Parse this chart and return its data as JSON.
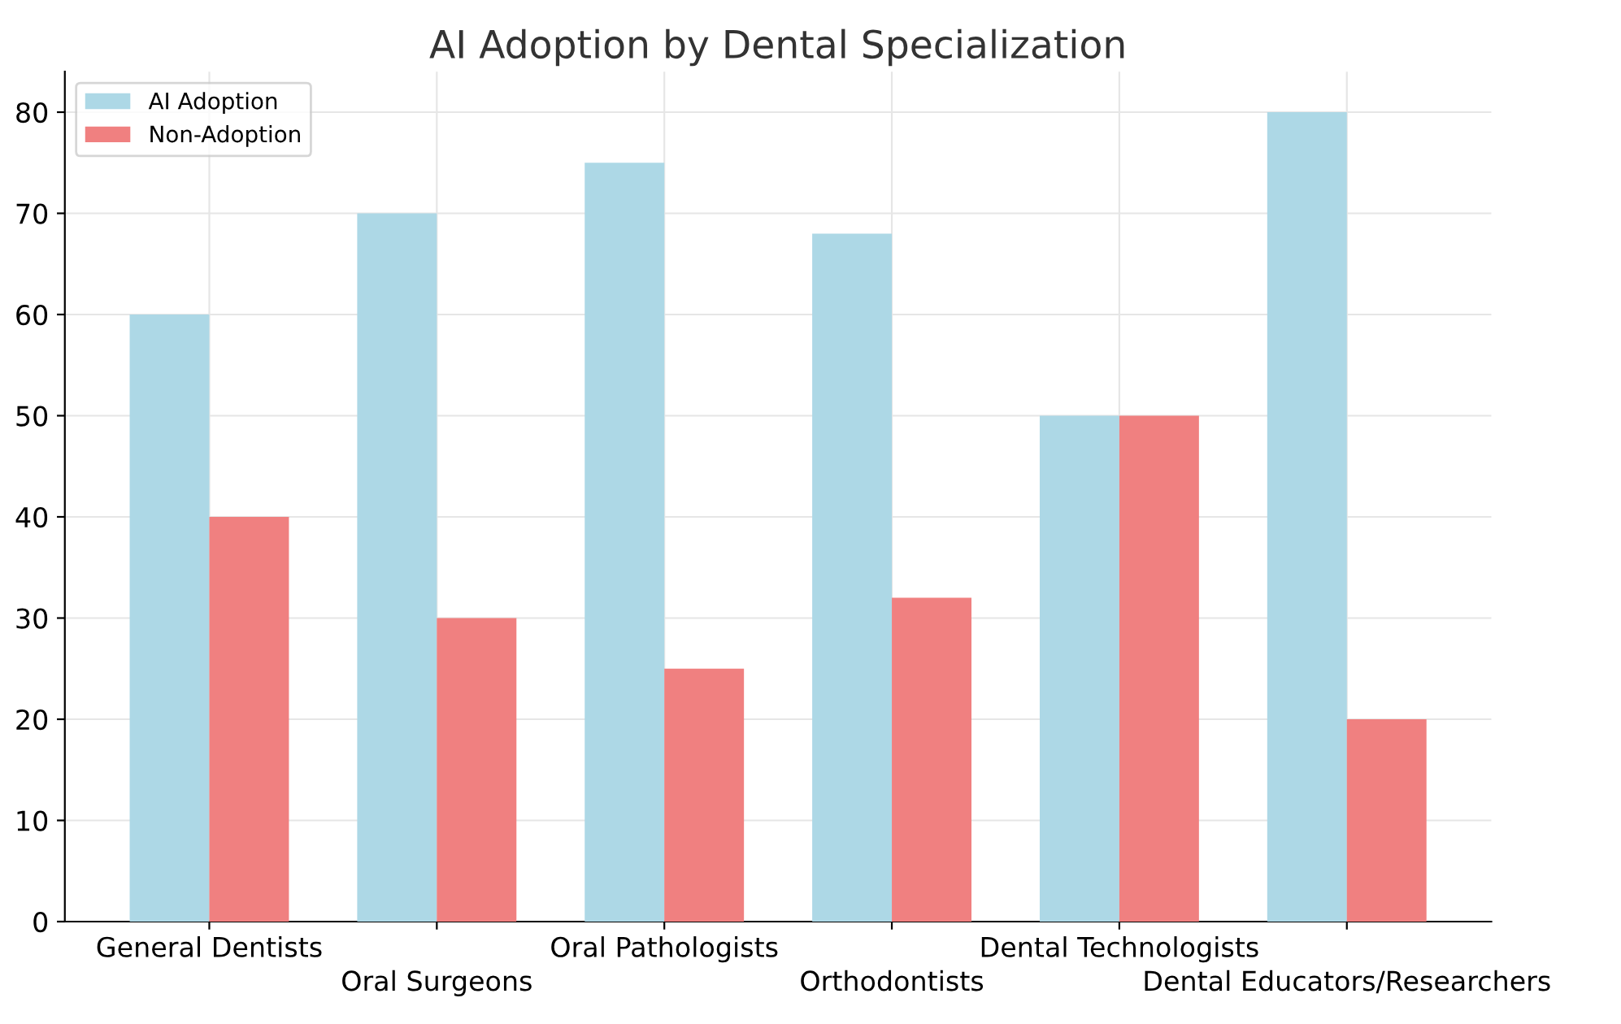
{
  "chart_data": {
    "type": "bar",
    "title": "AI Adoption by Dental Specialization",
    "categories": [
      "General Dentists",
      "Oral Surgeons",
      "Oral Pathologists",
      "Orthodontists",
      "Dental Technologists",
      "Dental Educators/Researchers"
    ],
    "series": [
      {
        "name": "AI Adoption",
        "color": "#add8e6",
        "values": [
          60,
          70,
          75,
          68,
          50,
          80
        ]
      },
      {
        "name": "Non-Adoption",
        "color": "#f08080",
        "values": [
          40,
          30,
          25,
          32,
          50,
          20
        ]
      }
    ],
    "ylim": [
      0,
      84
    ],
    "yticks": [
      0,
      10,
      20,
      30,
      40,
      50,
      60,
      70,
      80
    ],
    "grid": true,
    "legend": "top left"
  }
}
